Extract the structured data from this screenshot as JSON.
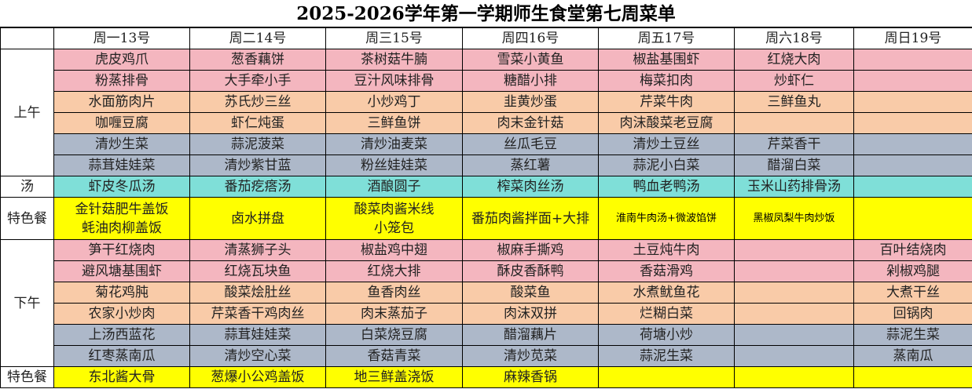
{
  "title": "2025-2026学年第一学期师生食堂第七周菜单",
  "colors": {
    "pink": "#f4b6bf",
    "peach": "#f9cba8",
    "gray": "#adb8c9",
    "teal": "#7fdfd8",
    "yellow": "#ffff00"
  },
  "days": [
    "周一13号",
    "周二14号",
    "周三15号",
    "周四16号",
    "周五17号",
    "周六18号",
    "周日19号"
  ],
  "sections": [
    {
      "label": "上午",
      "rows": [
        {
          "color": "pink",
          "cells": [
            "虎皮鸡爪",
            "葱香藕饼",
            "茶树菇牛腩",
            "雪菜小黄鱼",
            "椒盐基围虾",
            "红烧大肉",
            ""
          ]
        },
        {
          "color": "pink",
          "cells": [
            "粉蒸排骨",
            "大手牵小手",
            "豆汁风味排骨",
            "糖醋小排",
            "梅菜扣肉",
            "炒虾仁",
            ""
          ]
        },
        {
          "color": "peach",
          "cells": [
            "水面筋肉片",
            "苏氏炒三丝",
            "小炒鸡丁",
            "韭黄炒蛋",
            "芹菜牛肉",
            "三鲜鱼丸",
            ""
          ]
        },
        {
          "color": "peach",
          "cells": [
            "咖喱豆腐",
            "虾仁炖蛋",
            "三鲜鱼饼",
            "肉末金针菇",
            "肉沫酸菜老豆腐",
            "",
            ""
          ]
        },
        {
          "color": "gray",
          "cells": [
            "清炒生菜",
            "蒜泥菠菜",
            "清炒油麦菜",
            "丝瓜毛豆",
            "清炒土豆丝",
            "芹菜香干",
            ""
          ]
        },
        {
          "color": "gray",
          "cells": [
            "蒜茸娃娃菜",
            "清炒紫甘蓝",
            "粉丝娃娃菜",
            "蒸红薯",
            "蒜泥小白菜",
            "醋溜白菜",
            ""
          ]
        }
      ]
    },
    {
      "label": "汤",
      "rows": [
        {
          "color": "teal",
          "cells": [
            "虾皮冬瓜汤",
            "番茄疙瘩汤",
            "酒酿圆子",
            "榨菜肉丝汤",
            "鸭血老鸭汤",
            "玉米山药排骨汤",
            ""
          ]
        }
      ]
    },
    {
      "label": "特色餐",
      "special": true,
      "rows": [
        {
          "color": "yellow",
          "cells": [
            "金针菇肥牛盖饭\n蚝油肉柳盖饭",
            "卤水拼盘",
            "酸菜肉酱米线\n小笼包",
            "番茄肉酱拌面+大排",
            "淮南牛肉汤+微波馅饼",
            "黑椒凤梨牛肉炒饭",
            ""
          ]
        }
      ]
    },
    {
      "label": "下午",
      "rows": [
        {
          "color": "pink",
          "cells": [
            "笋干红烧肉",
            "清蒸狮子头",
            "椒盐鸡中翅",
            "椒麻手撕鸡",
            "土豆炖牛肉",
            "",
            "百叶结烧肉"
          ]
        },
        {
          "color": "pink",
          "cells": [
            "避风塘基围虾",
            "红烧瓦块鱼",
            "红烧大排",
            "酥皮香酥鸭",
            "香菇滑鸡",
            "",
            "剁椒鸡腿"
          ]
        },
        {
          "color": "peach",
          "cells": [
            "菊花鸡肫",
            "酸菜烩肚丝",
            "鱼香肉丝",
            "酸菜鱼",
            "水煮鱿鱼花",
            "",
            "大煮干丝"
          ]
        },
        {
          "color": "peach",
          "cells": [
            "农家小炒肉",
            "芹菜香干鸡肉丝",
            "肉末蒸茄子",
            "肉沫双拼",
            "烂糊白菜",
            "",
            "回锅肉"
          ]
        },
        {
          "color": "gray",
          "cells": [
            "上汤西蓝花",
            "蒜茸娃娃菜",
            "白菜烧豆腐",
            "醋溜藕片",
            "荷塘小炒",
            "",
            "蒜泥生菜"
          ]
        },
        {
          "color": "gray",
          "cells": [
            "红枣蒸南瓜",
            "清炒空心菜",
            "香菇青菜",
            "清炒苋菜",
            "蒜泥生菜",
            "",
            "蒸南瓜"
          ]
        }
      ]
    },
    {
      "label": "特色餐",
      "rows": [
        {
          "color": "yellow",
          "cells": [
            "东北酱大骨",
            "葱爆小公鸡盖饭",
            "地三鲜盖浇饭",
            "麻辣香锅",
            "",
            "",
            ""
          ]
        }
      ]
    }
  ]
}
